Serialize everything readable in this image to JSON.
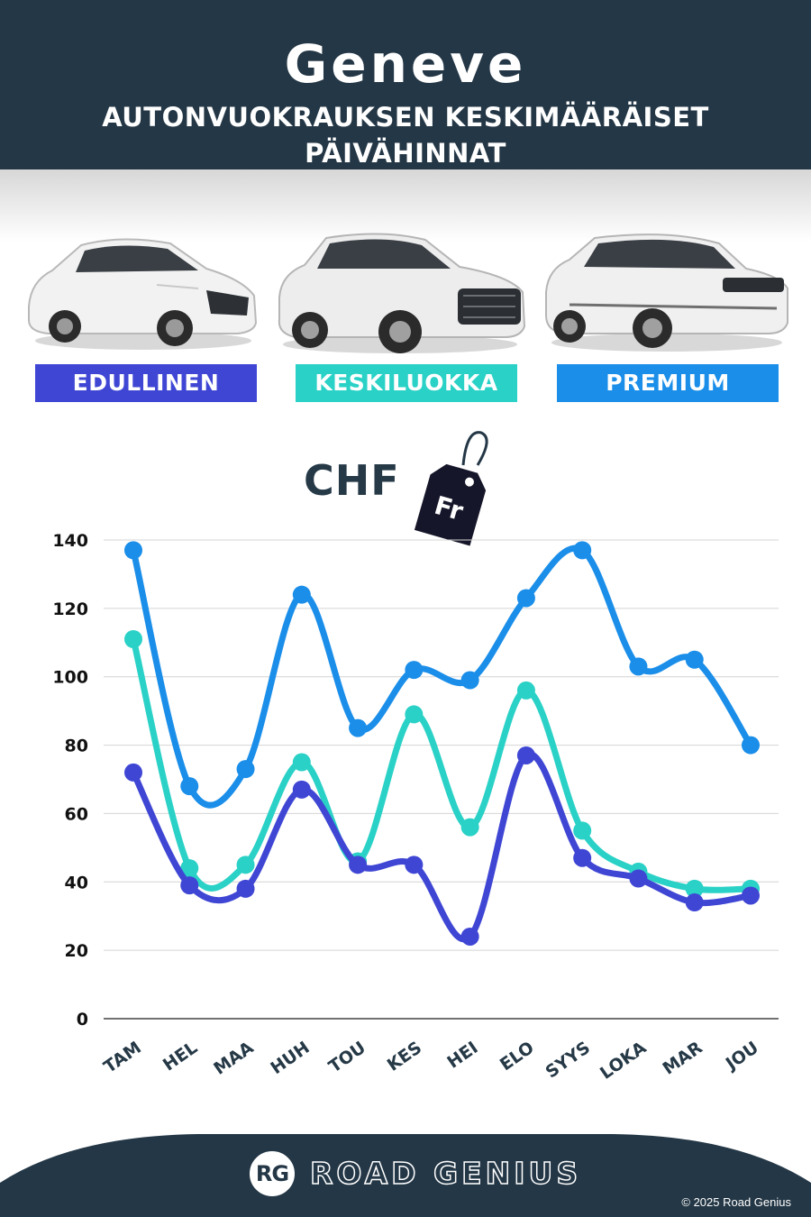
{
  "header": {
    "city": "Geneve",
    "subtitle": "AUTONVUOKRAUKSEN KESKIMÄÄRÄISET PÄIVÄHINNAT"
  },
  "categories": {
    "budget": "EDULLINEN",
    "mid": "KESKILUOKKA",
    "premium": "PREMIUM"
  },
  "currency": {
    "label": "CHF",
    "tag_text": "Fr"
  },
  "colors": {
    "header_bg": "#243746",
    "budget": "#3f46d4",
    "mid": "#2ad1c6",
    "premium": "#1a8ee9"
  },
  "chart_data": {
    "type": "line",
    "title": "",
    "xlabel": "",
    "ylabel": "",
    "categories": [
      "TAM",
      "HEL",
      "MAA",
      "HUH",
      "TOU",
      "KES",
      "HEI",
      "ELO",
      "SYYS",
      "LOKA",
      "MAR",
      "JOU"
    ],
    "ylim": [
      0,
      140
    ],
    "yticks": [
      0,
      20,
      40,
      60,
      80,
      100,
      120,
      140
    ],
    "grid": true,
    "smooth": true,
    "series": [
      {
        "name": "PREMIUM",
        "color": "#1a8ee9",
        "values": [
          137,
          68,
          73,
          124,
          85,
          102,
          99,
          123,
          137,
          103,
          105,
          80
        ]
      },
      {
        "name": "KESKILUOKKA",
        "color": "#2ad1c6",
        "values": [
          111,
          44,
          45,
          75,
          46,
          89,
          56,
          96,
          55,
          43,
          38,
          38
        ]
      },
      {
        "name": "EDULLINEN",
        "color": "#3f46d4",
        "values": [
          72,
          39,
          38,
          67,
          45,
          45,
          24,
          77,
          47,
          41,
          34,
          36
        ]
      }
    ]
  },
  "footer": {
    "logo": "RG",
    "brand": "ROAD GENIUS",
    "copyright": "© 2025 Road Genius"
  }
}
